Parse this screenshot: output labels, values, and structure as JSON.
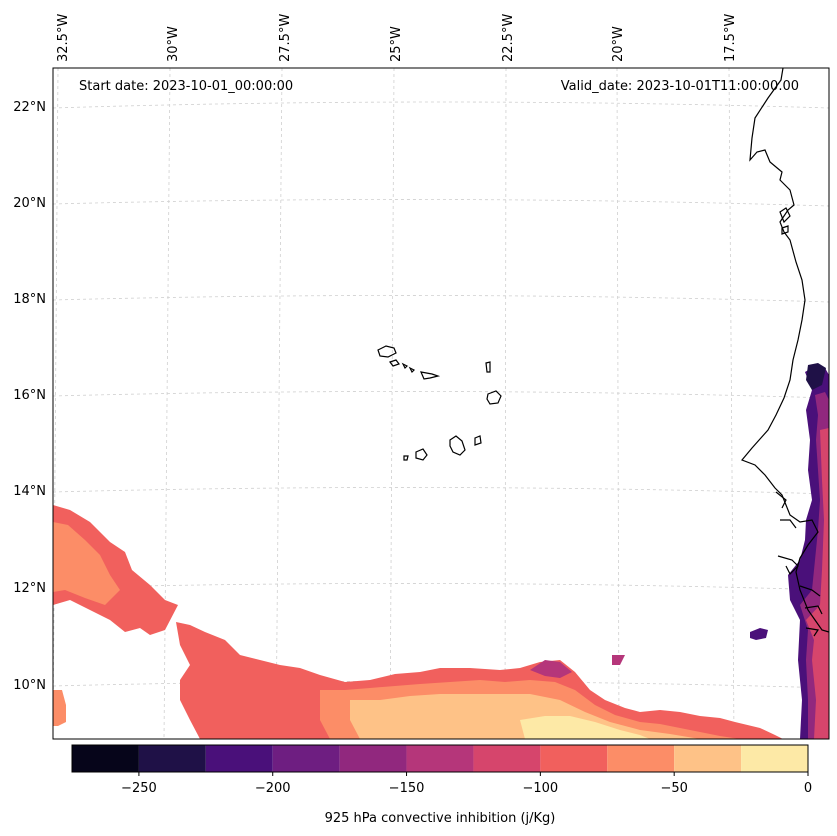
{
  "map": {
    "start_date_label": "Start date: 2023-10-01_00:00:00",
    "valid_date_label": "Valid_date: 2023-10-01T11:00:00.00",
    "lon_labels": [
      "32.5°W",
      "30°W",
      "27.5°W",
      "25°W",
      "22.5°W",
      "20°W",
      "17.5°W"
    ],
    "lat_labels": [
      "22°N",
      "20°N",
      "18°N",
      "16°N",
      "14°N",
      "12°N",
      "10°N"
    ]
  },
  "colorbar": {
    "title": "925 hPa convective inhibition (j/Kg)",
    "tick_labels": [
      "−250",
      "−200",
      "−150",
      "−100",
      "−50",
      "0"
    ],
    "bins": [
      -275,
      -250,
      -225,
      -200,
      -175,
      -150,
      -125,
      -100,
      -75,
      -50,
      -25,
      0
    ],
    "colors": [
      "#06051a",
      "#1f1147",
      "#4a107a",
      "#6e1e81",
      "#91287e",
      "#b5367a",
      "#d6456c",
      "#f1605d",
      "#fc8d67",
      "#fec287",
      "#fde9a6"
    ]
  }
}
